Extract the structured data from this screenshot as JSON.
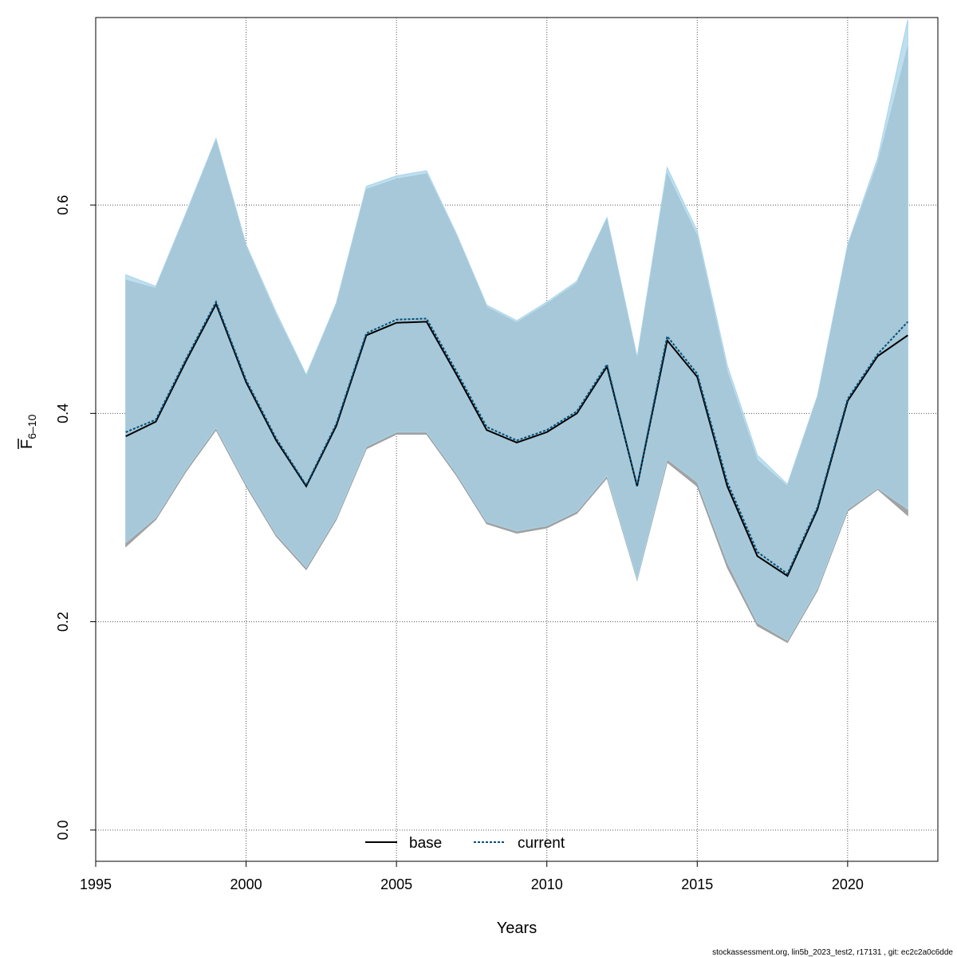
{
  "chart_data": {
    "type": "line",
    "xlabel": "Years",
    "ylabel": {
      "base": "F",
      "subscript": "6–10"
    },
    "xlim": [
      1995,
      2023
    ],
    "ylim": [
      -0.03,
      0.78
    ],
    "grid": true,
    "legend_placement": "bottom-center",
    "x_ticks": [
      "1995",
      "2000",
      "2005",
      "2010",
      "2015",
      "2020"
    ],
    "y_ticks": [
      "0.0",
      "0.2",
      "0.4",
      "0.6"
    ],
    "x": [
      1996,
      1997,
      1998,
      1999,
      2000,
      2001,
      2002,
      2003,
      2004,
      2005,
      2006,
      2007,
      2008,
      2009,
      2010,
      2011,
      2012,
      2013,
      2014,
      2015,
      2016,
      2017,
      2018,
      2019,
      2020,
      2021,
      2022
    ],
    "series": [
      {
        "name": "base",
        "color": "#000000",
        "band_color": "#9e9e9e",
        "line_style": "solid",
        "values": [
          0.378,
          0.392,
          0.45,
          0.505,
          0.43,
          0.374,
          0.33,
          0.388,
          0.475,
          0.487,
          0.488,
          0.437,
          0.384,
          0.372,
          0.382,
          0.4,
          0.445,
          0.33,
          0.47,
          0.435,
          0.33,
          0.263,
          0.244,
          0.308,
          0.412,
          0.455,
          0.475
        ],
        "lower": [
          0.272,
          0.298,
          0.344,
          0.384,
          0.33,
          0.282,
          0.25,
          0.298,
          0.366,
          0.38,
          0.38,
          0.34,
          0.294,
          0.285,
          0.29,
          0.304,
          0.338,
          0.24,
          0.353,
          0.33,
          0.252,
          0.196,
          0.18,
          0.23,
          0.306,
          0.327,
          0.302
        ],
        "upper": [
          0.528,
          0.52,
          0.59,
          0.662,
          0.56,
          0.494,
          0.436,
          0.504,
          0.615,
          0.625,
          0.63,
          0.57,
          0.502,
          0.487,
          0.505,
          0.525,
          0.587,
          0.452,
          0.63,
          0.57,
          0.44,
          0.355,
          0.33,
          0.415,
          0.56,
          0.64,
          0.752
        ]
      },
      {
        "name": "current",
        "color": "#00507a",
        "band_color": "#a8d4ea",
        "line_style": "dashed",
        "values": [
          0.382,
          0.394,
          0.452,
          0.507,
          0.432,
          0.376,
          0.331,
          0.39,
          0.477,
          0.49,
          0.491,
          0.44,
          0.387,
          0.374,
          0.384,
          0.402,
          0.447,
          0.33,
          0.474,
          0.438,
          0.334,
          0.267,
          0.246,
          0.31,
          0.414,
          0.457,
          0.488
        ],
        "lower": [
          0.276,
          0.3,
          0.346,
          0.386,
          0.332,
          0.284,
          0.252,
          0.3,
          0.368,
          0.382,
          0.382,
          0.342,
          0.296,
          0.287,
          0.292,
          0.306,
          0.34,
          0.241,
          0.356,
          0.334,
          0.257,
          0.199,
          0.182,
          0.232,
          0.308,
          0.328,
          0.308
        ],
        "upper": [
          0.533,
          0.522,
          0.592,
          0.664,
          0.562,
          0.497,
          0.437,
          0.506,
          0.618,
          0.628,
          0.633,
          0.572,
          0.504,
          0.489,
          0.507,
          0.527,
          0.588,
          0.454,
          0.636,
          0.575,
          0.446,
          0.36,
          0.332,
          0.417,
          0.562,
          0.645,
          0.778
        ]
      }
    ]
  },
  "footer": "stockassessment.org, lin5b_2023_test2, r17131 , git: ec2c2a0c6dde"
}
